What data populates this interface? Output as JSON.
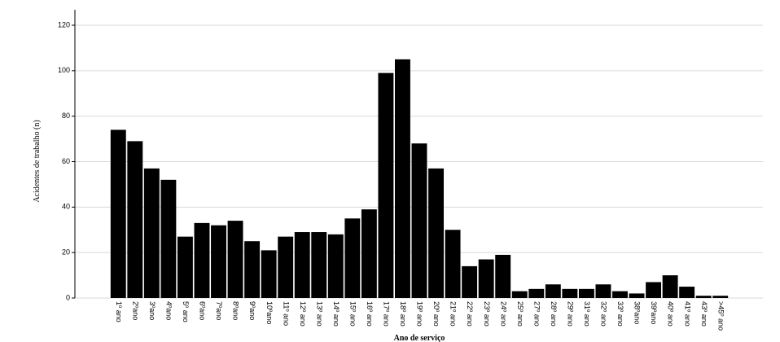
{
  "chart_data": {
    "type": "bar",
    "y_label": "Acidentes de trabalho (n)",
    "x_label": "Ano de serviço",
    "categories": [
      "1º ano",
      "2ºano",
      "3ºano",
      "4ºano",
      "5º ano",
      "6ºano",
      "7ºano",
      "8ºano",
      "9ºano",
      "10ºano",
      "11º ano",
      "12º ano",
      "13º ano",
      "14º ano",
      "15º ano",
      "16º ano",
      "17º ano",
      "18º ano",
      "19º ano",
      "20º ano",
      "21º ano",
      "22º ano",
      "23º ano",
      "24º ano",
      "25º ano",
      "27º ano",
      "28º ano",
      "29º ano",
      "31º ano",
      "32º ano",
      "33º ano",
      "38ºano",
      "39ºano",
      "40º ano",
      "41º ano",
      "43º ano",
      ">45º ano"
    ],
    "values": [
      74,
      69,
      57,
      52,
      27,
      33,
      32,
      34,
      25,
      21,
      27,
      29,
      29,
      28,
      35,
      39,
      99,
      105,
      68,
      57,
      30,
      14,
      17,
      19,
      3,
      4,
      6,
      4,
      4,
      6,
      3,
      2,
      7,
      10,
      5,
      1,
      1
    ],
    "color": "#000000",
    "ylim": [
      0,
      120
    ],
    "yticks": [
      0,
      20,
      40,
      60,
      80,
      100,
      120
    ],
    "grid": true
  }
}
